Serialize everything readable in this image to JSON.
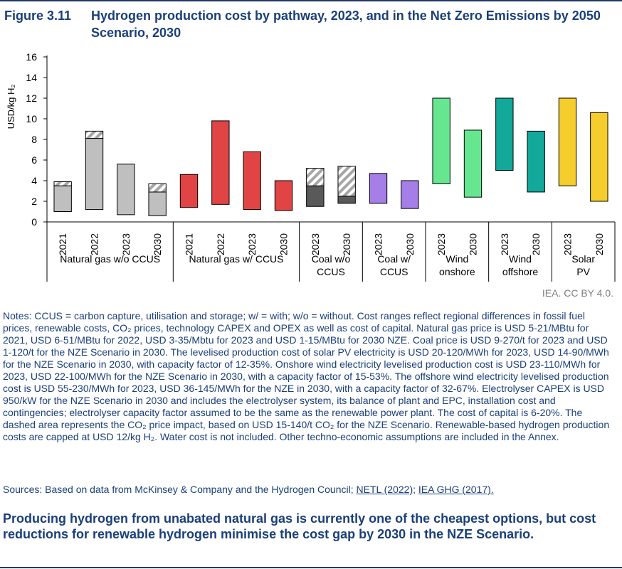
{
  "figure": {
    "number": "Figure 3.11",
    "title": "Hydrogen production cost by pathway, 2023, and in the Net Zero Emissions by 2050 Scenario, 2030"
  },
  "credit": "IEA. CC BY 4.0.",
  "notes_text": "Notes: CCUS = carbon capture, utilisation and storage; w/ = with; w/o = without. Cost ranges reflect regional differences in fossil fuel prices, renewable costs, CO₂ prices, technology CAPEX and OPEX as well as cost of capital. Natural gas price is USD 5-21/MBtu for 2021, USD 6-51/MBtu for 2022, USD 3-35/Mbtu for 2023 and USD 1-15/MBtu for 2030 NZE. Coal price is USD 9-270/t for 2023 and USD 1-120/t for the NZE Scenario in 2030. The levelised production cost of solar PV electricity is USD 20-120/MWh for 2023, USD 14-90/MWh for the NZE Scenario in 2030, with capacity factor of 12-35%. Onshore wind electricity levelised production cost is USD 23-110/MWh for 2023, USD 22-100/MWh for the NZE Scenario in 2030, with a capacity factor of 15-53%. The offshore wind electricity levelised production cost is USD 55-230/MWh for 2023, USD 36-145/MWh for the NZE in 2030, with a capacity factor of 32-67%. Electrolyser CAPEX is USD 950/kW for the NZE Scenario in 2030 and includes the electrolyser system, its balance of plant and EPC, installation cost and contingencies; electrolyser capacity factor assumed to be the same as the renewable power plant. The cost of capital is 6-20%. The dashed area represents the CO₂ price impact, based on USD 15-140/t CO₂ for the NZE Scenario. Renewable-based hydrogen production costs are capped at USD 12/kg H₂. Water cost is not included. Other techno-economic assumptions are included in the Annex.",
  "sources": {
    "prefix": "Sources: Based on data from McKinsey & Company and the Hydrogen Council; ",
    "link1": "NETL (2022);",
    "link2": "IEA GHG (2017)."
  },
  "summary": "Producing hydrogen from unabated natural gas is currently one of the cheapest options, but cost reductions for renewable hydrogen minimise the cost gap by 2030 in the NZE Scenario.",
  "chart_data": {
    "type": "bar",
    "subtype": "floating range bars with hatched CO2 price segment",
    "ylabel": "USD/kg H₂",
    "ylim": [
      0,
      16
    ],
    "yticks": [
      0,
      2,
      4,
      6,
      8,
      10,
      12,
      14,
      16
    ],
    "grid": false,
    "groups": [
      {
        "label": "Natural gas w/o CCUS",
        "color": "#bfbfbf",
        "bars": [
          {
            "year": "2021",
            "low": 1.0,
            "base_high": 3.5,
            "high": 3.9
          },
          {
            "year": "2022",
            "low": 1.2,
            "base_high": 8.1,
            "high": 8.8
          },
          {
            "year": "2023",
            "low": 0.7,
            "base_high": 5.6,
            "high": 5.6
          },
          {
            "year": "2030",
            "low": 0.6,
            "base_high": 2.9,
            "high": 3.7
          }
        ]
      },
      {
        "label": "Natural gas w/ CCUS",
        "color": "#e04444",
        "bars": [
          {
            "year": "2021",
            "low": 1.4,
            "base_high": 4.6,
            "high": 4.6
          },
          {
            "year": "2022",
            "low": 1.7,
            "base_high": 9.8,
            "high": 9.8
          },
          {
            "year": "2023",
            "low": 1.2,
            "base_high": 6.8,
            "high": 6.8
          },
          {
            "year": "2030",
            "low": 1.1,
            "base_high": 4.0,
            "high": 4.0
          }
        ]
      },
      {
        "label": "Coal w/o CCUS",
        "color": "#595959",
        "bars": [
          {
            "year": "2023",
            "low": 1.5,
            "base_high": 3.5,
            "high": 5.2
          },
          {
            "year": "2030",
            "low": 1.8,
            "base_high": 2.5,
            "high": 5.4
          }
        ]
      },
      {
        "label": "Coal w/ CCUS",
        "color": "#a57ee8",
        "bars": [
          {
            "year": "2023",
            "low": 1.8,
            "base_high": 4.7,
            "high": 4.7
          },
          {
            "year": "2030",
            "low": 1.3,
            "base_high": 4.0,
            "high": 4.0
          }
        ]
      },
      {
        "label": "Wind onshore",
        "color": "#66e68f",
        "bars": [
          {
            "year": "2023",
            "low": 3.7,
            "base_high": 12.0,
            "high": 12.0
          },
          {
            "year": "2030",
            "low": 2.4,
            "base_high": 8.9,
            "high": 8.9
          }
        ]
      },
      {
        "label": "Wind offshore",
        "color": "#12a89a",
        "bars": [
          {
            "year": "2023",
            "low": 5.0,
            "base_high": 12.0,
            "high": 12.0
          },
          {
            "year": "2030",
            "low": 2.9,
            "base_high": 8.8,
            "high": 8.8
          }
        ]
      },
      {
        "label": "Solar PV",
        "color": "#f5cd2c",
        "bars": [
          {
            "year": "2023",
            "low": 3.5,
            "base_high": 12.0,
            "high": 12.0
          },
          {
            "year": "2030",
            "low": 2.0,
            "base_high": 10.6,
            "high": 10.6
          }
        ]
      }
    ]
  }
}
